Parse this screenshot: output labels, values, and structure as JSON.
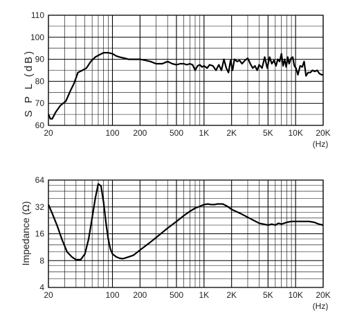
{
  "chart_data": [
    {
      "type": "line",
      "ylabel": "S P L (dB)",
      "xunit": "(Hz)",
      "x_scale": "log",
      "xlim": [
        20,
        20000
      ],
      "ylim": [
        60,
        110
      ],
      "x_ticks": [
        20,
        100,
        200,
        500,
        1000,
        2000,
        5000,
        10000,
        20000
      ],
      "x_tick_labels": [
        "20",
        "100",
        "200",
        "500",
        "1K",
        "2K",
        "5K",
        "10K",
        "20K"
      ],
      "y_ticks": [
        60,
        70,
        80,
        90,
        100,
        110
      ],
      "y_tick_labels": [
        "60",
        "70",
        "80",
        "90",
        "100",
        "110"
      ],
      "grid": true,
      "color": "#000000",
      "series": [
        {
          "x": [
            20,
            21,
            22,
            24,
            27,
            31,
            35,
            38,
            42,
            47,
            52,
            58,
            65,
            72,
            80,
            90,
            100,
            110,
            120,
            135,
            150,
            170,
            200,
            230,
            260,
            300,
            350,
            400,
            450,
            500,
            550,
            600,
            650,
            700,
            750,
            800,
            850,
            900,
            950,
            1000,
            1080,
            1150,
            1250,
            1350,
            1450,
            1550,
            1650,
            1750,
            1850,
            1950,
            2050,
            2150,
            2300,
            2450,
            2600,
            2800,
            3000,
            3200,
            3400,
            3600,
            3800,
            4000,
            4300,
            4600,
            4900,
            5200,
            5500,
            5800,
            6100,
            6400,
            6700,
            7000,
            7300,
            7600,
            7900,
            8200,
            8500,
            8900,
            9300,
            9700,
            10100,
            10600,
            11200,
            11800,
            12400,
            13000,
            13700,
            14500,
            15300,
            16200,
            17200,
            18200,
            19200,
            20000
          ],
          "y": [
            65,
            63,
            63,
            66,
            69,
            71,
            76,
            79,
            84,
            85,
            86,
            89,
            91,
            92,
            93,
            93,
            92.5,
            91.5,
            91,
            90.5,
            90,
            90,
            90,
            89.5,
            89,
            88,
            88,
            89,
            88,
            87.5,
            88,
            88,
            87.5,
            88,
            87.5,
            85,
            87,
            87.5,
            86.5,
            87,
            86,
            87.5,
            87,
            85,
            87.5,
            85,
            90,
            86,
            84,
            89.5,
            85,
            90,
            89,
            89.5,
            88,
            89.5,
            90.5,
            88,
            86,
            87,
            85,
            87.5,
            86,
            91,
            86,
            91,
            88,
            89.5,
            87,
            90,
            89,
            92.5,
            87,
            90,
            86.5,
            91,
            88,
            90.5,
            91,
            87,
            86,
            83,
            87,
            86.5,
            89,
            82.5,
            84,
            84,
            85,
            84.5,
            85,
            83.5,
            83,
            83
          ]
        }
      ]
    },
    {
      "type": "line",
      "ylabel": "Impedance (Ω)",
      "xunit": "(Hz)",
      "x_scale": "log",
      "y_scale": "log",
      "xlim": [
        20,
        20000
      ],
      "ylim": [
        4,
        64
      ],
      "x_ticks": [
        20,
        100,
        200,
        500,
        1000,
        2000,
        5000,
        10000,
        20000
      ],
      "x_tick_labels": [
        "20",
        "100",
        "200",
        "500",
        "1K",
        "2K",
        "5K",
        "10K",
        "20K"
      ],
      "y_ticks": [
        4,
        8,
        16,
        32,
        64
      ],
      "y_tick_labels": [
        "4",
        "8",
        "16",
        "32",
        "64"
      ],
      "grid": true,
      "color": "#000000",
      "series": [
        {
          "x": [
            20,
            22,
            25,
            28,
            32,
            36,
            40,
            45,
            50,
            55,
            60,
            65,
            70,
            75,
            80,
            85,
            90,
            95,
            100,
            110,
            120,
            130,
            140,
            150,
            170,
            200,
            250,
            300,
            400,
            500,
            600,
            700,
            800,
            900,
            1000,
            1100,
            1200,
            1300,
            1400,
            1500,
            1600,
            1800,
            2000,
            2500,
            3000,
            4000,
            5000,
            5500,
            6000,
            6500,
            7000,
            7500,
            8000,
            9000,
            10000,
            12000,
            14000,
            16000,
            18000,
            20000
          ],
          "y": [
            34,
            27,
            19.5,
            14,
            10,
            8.8,
            8.2,
            8.2,
            9.5,
            14,
            24,
            40,
            58,
            55,
            36,
            21,
            14,
            10.8,
            9.5,
            8.8,
            8.5,
            8.4,
            8.6,
            8.8,
            9.2,
            10.5,
            12.5,
            14.5,
            18.5,
            22,
            25.5,
            28.5,
            31,
            32.5,
            34,
            34.5,
            34,
            34,
            34.5,
            34.5,
            34.5,
            32.5,
            30,
            27,
            24.5,
            21,
            20,
            20.5,
            20,
            21,
            20.5,
            21,
            21.5,
            22,
            22,
            22,
            22,
            21.5,
            20.5,
            20
          ]
        }
      ]
    }
  ]
}
